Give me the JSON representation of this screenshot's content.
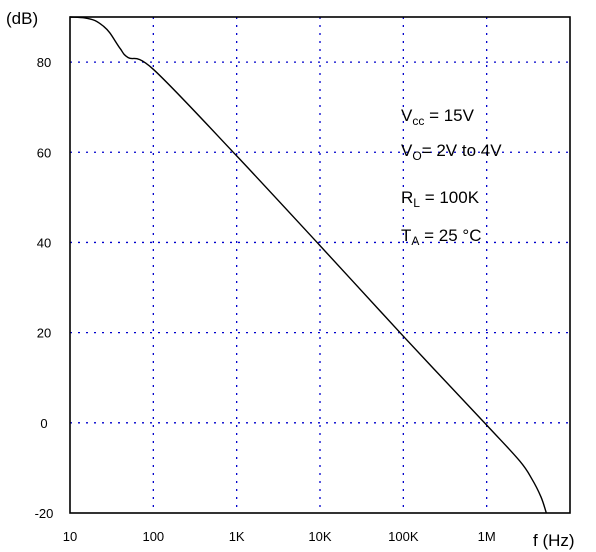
{
  "chart_data": {
    "type": "line",
    "title": "",
    "ylabel": "(dB)",
    "xlabel": "f (Hz)",
    "x_scale": "log",
    "xlim": [
      10,
      10000000
    ],
    "ylim": [
      -20,
      90
    ],
    "x_ticks": [
      {
        "value": 10,
        "label": "10"
      },
      {
        "value": 100,
        "label": "100"
      },
      {
        "value": 1000,
        "label": "1K"
      },
      {
        "value": 10000,
        "label": "10K"
      },
      {
        "value": 100000,
        "label": "100K"
      },
      {
        "value": 1000000,
        "label": "1M"
      }
    ],
    "y_ticks": [
      {
        "value": -20,
        "label": "-20"
      },
      {
        "value": 0,
        "label": "0"
      },
      {
        "value": 20,
        "label": "20"
      },
      {
        "value": 40,
        "label": "40"
      },
      {
        "value": 60,
        "label": "60"
      },
      {
        "value": 80,
        "label": "80"
      }
    ],
    "grid": true,
    "grid_color": "#0000cc",
    "series": [
      {
        "color": "#000000",
        "points": [
          {
            "x": 10,
            "y": 90
          },
          {
            "x": 15,
            "y": 89.8
          },
          {
            "x": 20,
            "y": 89.2
          },
          {
            "x": 25,
            "y": 88
          },
          {
            "x": 30,
            "y": 86.5
          },
          {
            "x": 40,
            "y": 83
          },
          {
            "x": 50,
            "y": 81
          },
          {
            "x": 100,
            "y": 78.4
          },
          {
            "x": 1000,
            "y": 59.2
          },
          {
            "x": 10000,
            "y": 39.3
          },
          {
            "x": 100000,
            "y": 19.2
          },
          {
            "x": 1000000,
            "y": -0.5
          },
          {
            "x": 2500000,
            "y": -8.5
          },
          {
            "x": 3500000,
            "y": -12.5
          },
          {
            "x": 4500000,
            "y": -16.5
          },
          {
            "x": 5200000,
            "y": -20
          }
        ]
      }
    ],
    "annotations": {
      "vcc": {
        "main": "V",
        "sub": "cc",
        "rest": " = 15V"
      },
      "vo": {
        "main": "V",
        "sub": "O",
        "rest": "= 2V to 4V"
      },
      "rl": {
        "main": "R",
        "sub": "L",
        "rest": " = 100K"
      },
      "ta": {
        "main": "T",
        "sub": "A",
        "rest": " = 25 °C"
      }
    }
  }
}
